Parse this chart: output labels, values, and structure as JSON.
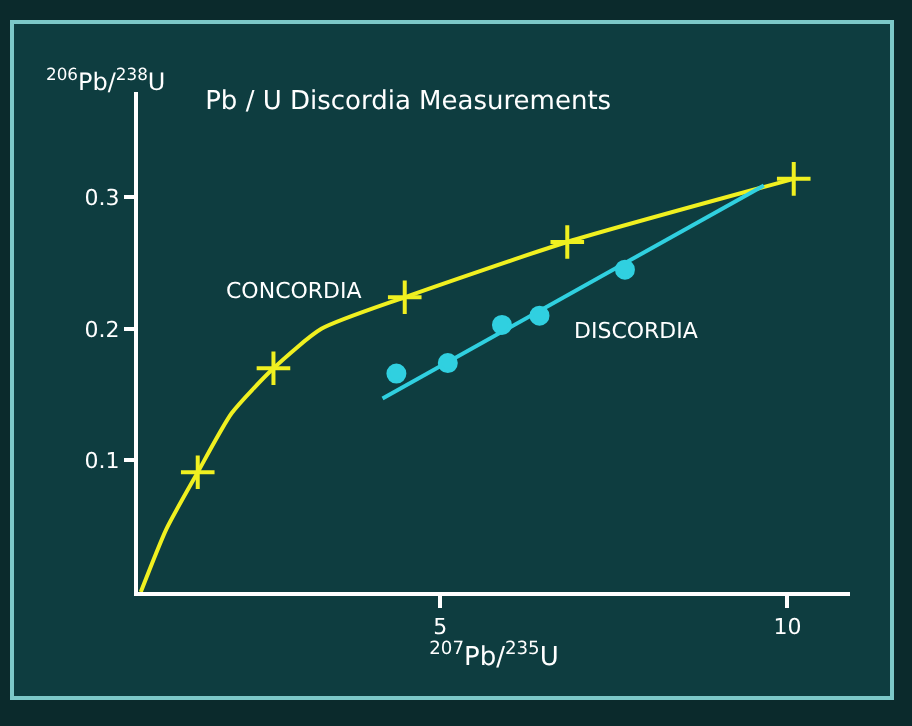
{
  "chart_data": {
    "type": "line",
    "title": "Pb / U Discordia Measurements",
    "xlabel": "$^{207}$Pb/$^{235}$U",
    "ylabel": "$^{206}$Pb/$^{238}$U",
    "xlim": [
      0.65,
      10.9
    ],
    "ylim": [
      0,
      0.38
    ],
    "xticks": [
      5,
      10
    ],
    "yticks": [
      0.1,
      0.2,
      0.3
    ],
    "grid": false,
    "legend": false,
    "line_style": "solid",
    "series": [
      {
        "name": "CONCORDIA",
        "color": "#f0f020",
        "marker": "none",
        "x": [
          0.69,
          1.06,
          1.51,
          2.0,
          2.6,
          3.29,
          4.49,
          6.83,
          10.09
        ],
        "values": [
          0,
          0.048,
          0.091,
          0.136,
          0.17,
          0.2,
          0.224,
          0.266,
          0.314
        ]
      },
      {
        "type": "scatter",
        "color": "#f0f020",
        "marker": "cross",
        "x": [
          1.51,
          2.6,
          4.49,
          6.83,
          10.09
        ],
        "values": [
          0.091,
          0.17,
          0.224,
          0.266,
          0.314
        ]
      },
      {
        "name": "DISCORDIA",
        "color": "#30d0e0",
        "marker": "none",
        "x": [
          4.17,
          9.66
        ],
        "values": [
          0.147,
          0.309
        ]
      },
      {
        "type": "scatter",
        "color": "#30d0e0",
        "marker": "circle",
        "x": [
          4.37,
          5.11,
          5.89,
          6.43,
          7.66
        ],
        "values": [
          0.166,
          0.174,
          0.203,
          0.21,
          0.245
        ]
      }
    ]
  }
}
